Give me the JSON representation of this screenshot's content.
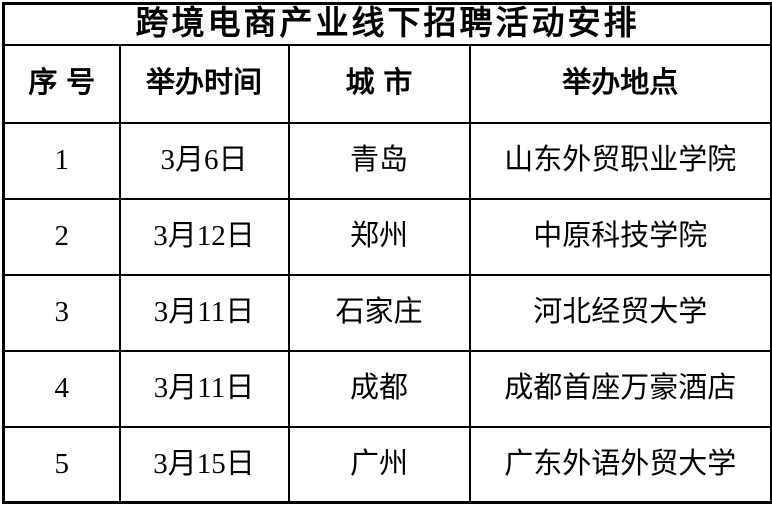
{
  "title": "跨境电商产业线下招聘活动安排",
  "colors": {
    "border": "#000000",
    "text": "#000000",
    "background": "#ffffff"
  },
  "table": {
    "headers": [
      "序号",
      "举办时间",
      "城市",
      "举办地点"
    ],
    "rows": [
      [
        "1",
        "3月6日",
        "青岛",
        "山东外贸职业学院"
      ],
      [
        "2",
        "3月12日",
        "郑州",
        "中原科技学院"
      ],
      [
        "3",
        "3月11日",
        "石家庄",
        "河北经贸大学"
      ],
      [
        "4",
        "3月11日",
        "成都",
        "成都首座万豪酒店"
      ],
      [
        "5",
        "3月15日",
        "广州",
        "广东外语外贸大学"
      ]
    ]
  }
}
